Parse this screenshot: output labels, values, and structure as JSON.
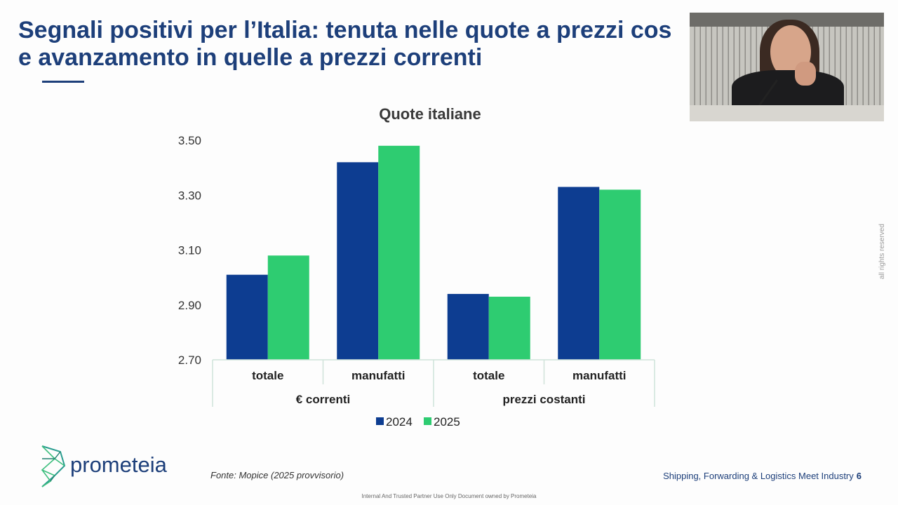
{
  "slide": {
    "title_line1": "Segnali positivi per l’Italia: tenuta nelle quote a prezzi cos",
    "title_line2": "e avanzamento in quelle a prezzi correnti",
    "side_note": "all rights reserved",
    "brand": "prometeia",
    "source": "Fonte: Mopice (2025 provvisorio)",
    "footer_event": "Shipping, Forwarding & Logistics Meet Industry",
    "page_number": "6",
    "classification": "Internal And Trusted Partner Use Only Document owned by Prometeia"
  },
  "chart_data": {
    "type": "bar",
    "title": "Quote italiane",
    "groups": [
      "€ correnti",
      "prezzi costanti"
    ],
    "categories": [
      "totale",
      "manufatti",
      "totale",
      "manufatti"
    ],
    "series": [
      {
        "name": "2024",
        "color": "#0d3d91",
        "values": [
          3.01,
          3.42,
          2.94,
          3.33
        ]
      },
      {
        "name": "2025",
        "color": "#2ecc71",
        "values": [
          3.08,
          3.48,
          2.93,
          3.32
        ]
      }
    ],
    "yticks": [
      "3.50",
      "3.30",
      "3.10",
      "2.90",
      "2.70"
    ],
    "ylim": [
      2.7,
      3.5
    ],
    "grid": false,
    "legend_position": "bottom"
  }
}
